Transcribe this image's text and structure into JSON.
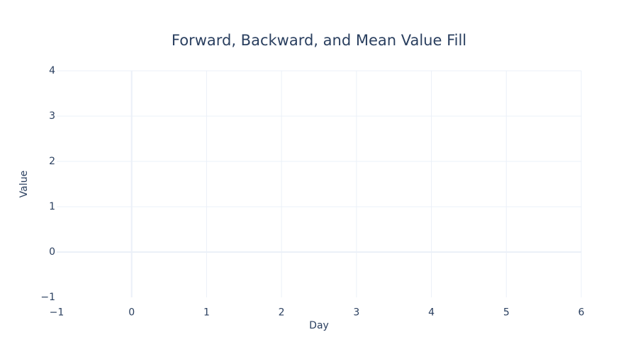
{
  "chart_data": {
    "type": "line",
    "title": "Forward, Backward, and Mean Value Fill",
    "xlabel": "Day",
    "ylabel": "Value",
    "xlim": [
      -1,
      6
    ],
    "ylim": [
      -1,
      4
    ],
    "x_ticks": [
      -1,
      0,
      1,
      2,
      3,
      4,
      5,
      6
    ],
    "y_ticks": [
      -1,
      0,
      1,
      2,
      3,
      4
    ],
    "x_tick_labels": [
      "−1",
      "0",
      "1",
      "2",
      "3",
      "4",
      "5",
      "6"
    ],
    "y_tick_labels": [
      "−1",
      "0",
      "1",
      "2",
      "3",
      "4"
    ],
    "grid": true,
    "series": []
  },
  "colors": {
    "text": "#2a3f5f",
    "grid": "#ebf0f8",
    "background": "#ffffff"
  }
}
